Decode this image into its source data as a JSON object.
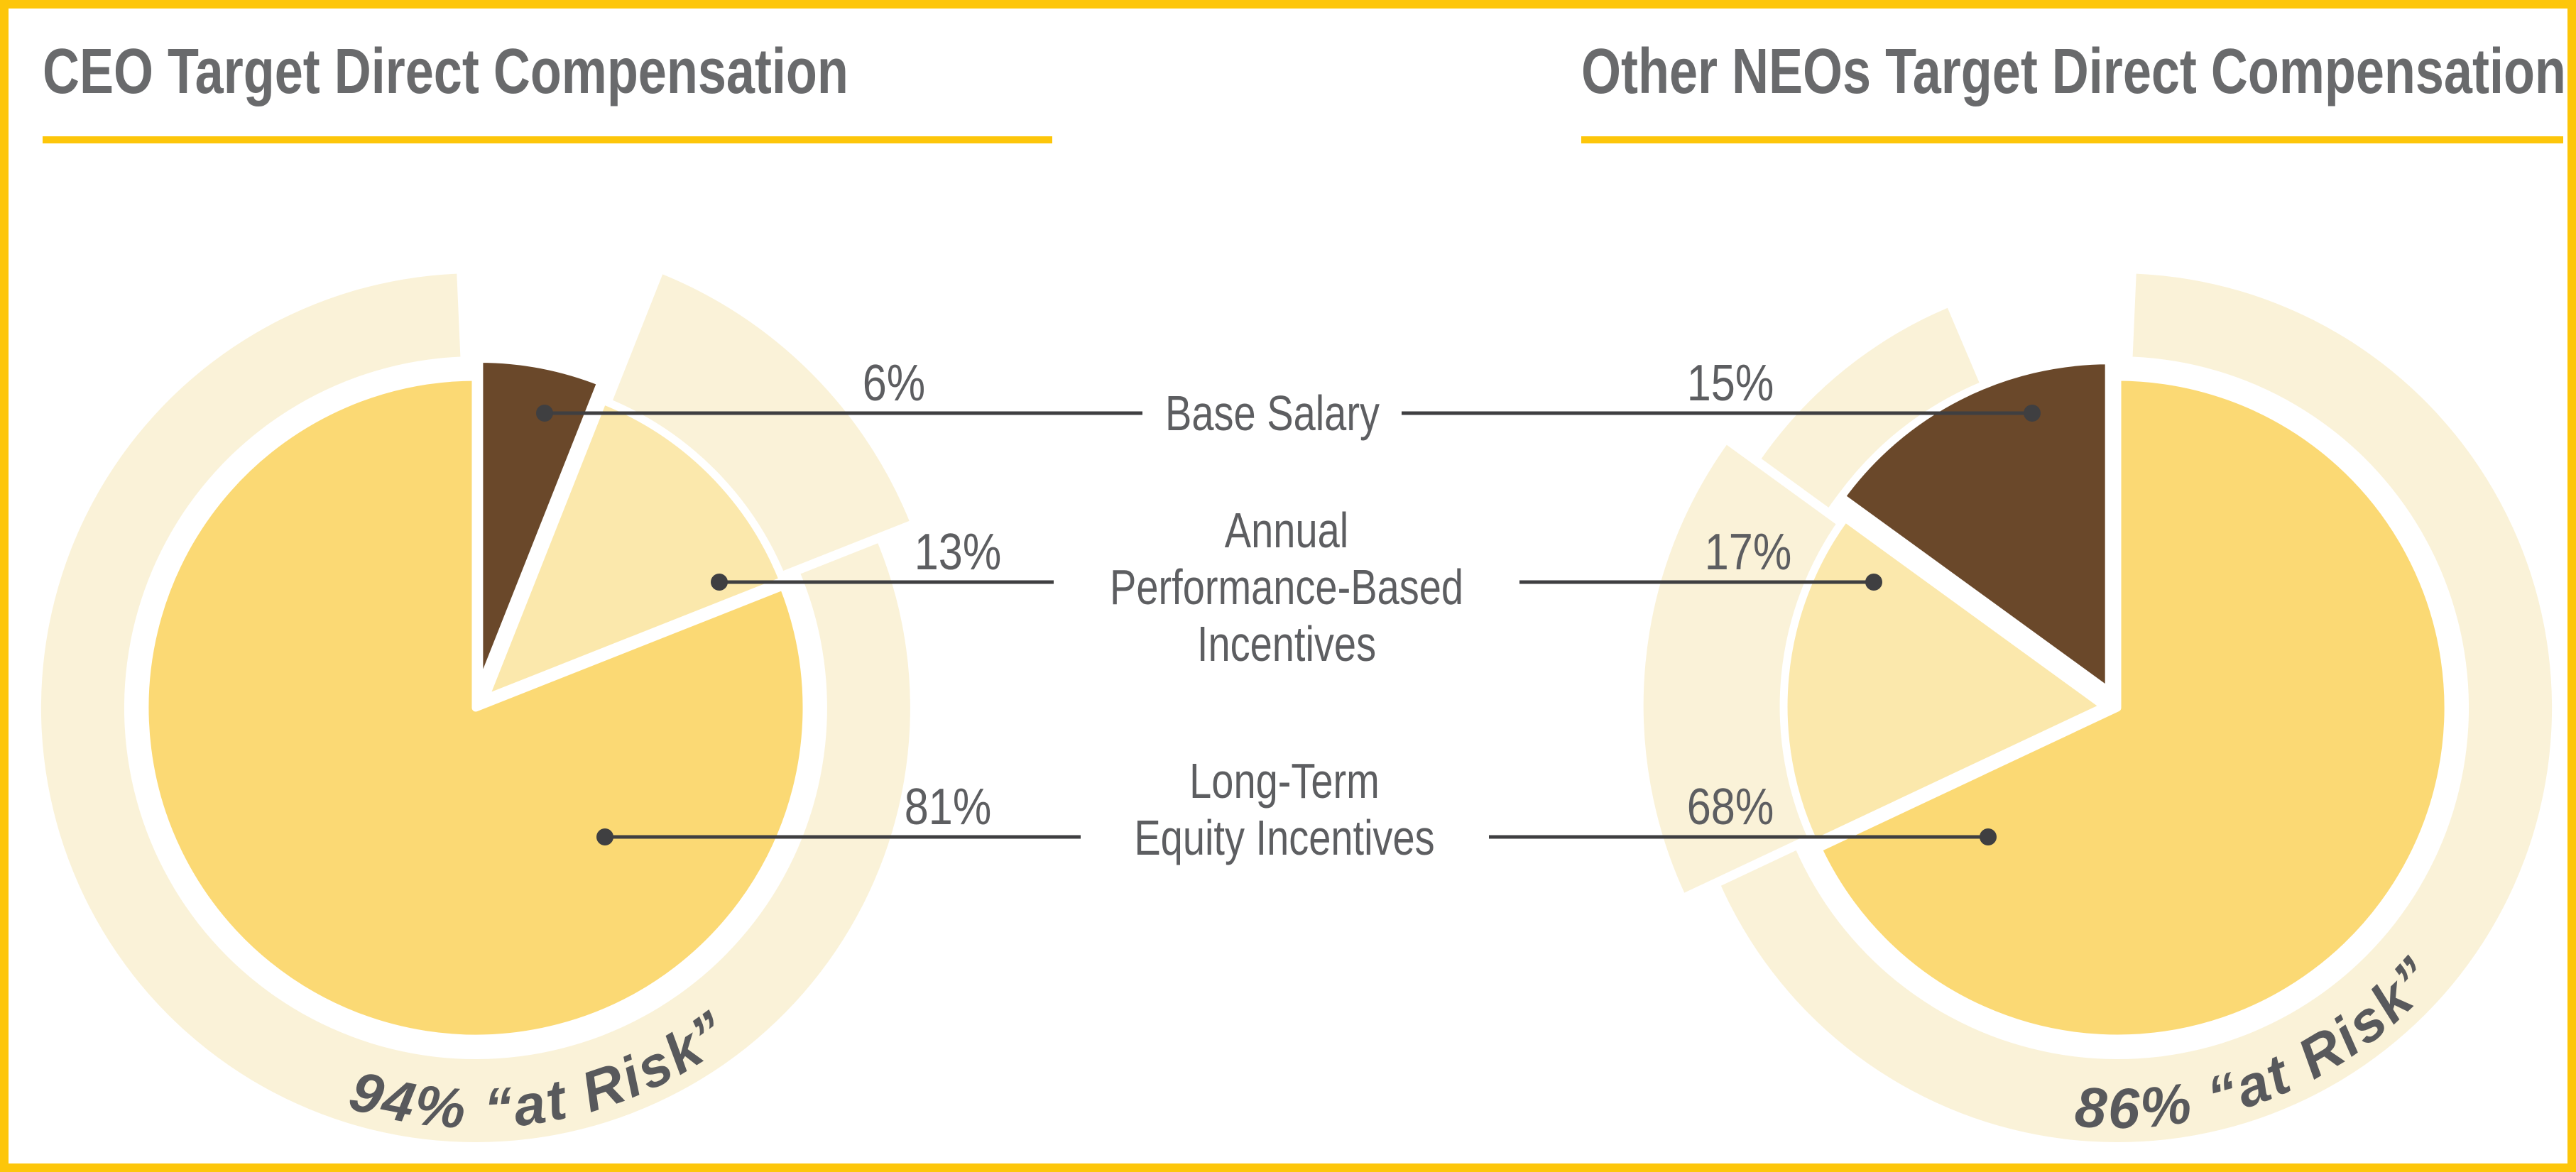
{
  "page": {
    "background": "#FFFFFF",
    "border_color": "#FDC60A",
    "accent_underline_color": "#FDC60A",
    "leader_line_color": "#3F3F41",
    "title_color": "#696A6C",
    "label_color": "#5D5E61"
  },
  "charts": [
    {
      "title": "CEO Target Direct Compensation",
      "at_risk_label": "94% “at Risk”",
      "at_risk_pct": 94,
      "slices": [
        {
          "label": "Base Salary",
          "value": 6,
          "display": "6%",
          "color": "#6A482A"
        },
        {
          "label": "Annual Performance-Based Incentives",
          "value": 13,
          "display": "13%",
          "color": "#FBE8AC"
        },
        {
          "label": "Long-Term Equity Incentives",
          "value": 81,
          "display": "81%",
          "color": "#FBD974"
        }
      ],
      "ring_color": "#FAF2D8"
    },
    {
      "title": "Other NEOs Target Direct Compensation",
      "at_risk_label": "86% “at Risk”",
      "at_risk_pct": 86,
      "slices": [
        {
          "label": "Base Salary",
          "value": 15,
          "display": "15%",
          "color": "#6A482A"
        },
        {
          "label": "Annual Performance-Based Incentives",
          "value": 17,
          "display": "17%",
          "color": "#FBE8AC"
        },
        {
          "label": "Long-Term Equity Incentives",
          "value": 68,
          "display": "68%",
          "color": "#FBD974"
        }
      ],
      "ring_color": "#FAF2D8"
    }
  ],
  "legend": {
    "rows": [
      {
        "lines": [
          "Base Salary"
        ],
        "left_pct": "6%",
        "right_pct": "15%"
      },
      {
        "lines": [
          "Annual",
          "Performance-Based",
          "Incentives"
        ],
        "left_pct": "13%",
        "right_pct": "17%"
      },
      {
        "lines": [
          "Long-Term",
          "Equity Incentives"
        ],
        "left_pct": "81%",
        "right_pct": "68%"
      }
    ]
  },
  "chart_data": [
    {
      "type": "pie",
      "title": "CEO Target Direct Compensation",
      "categories": [
        "Base Salary",
        "Annual Performance-Based Incentives",
        "Long-Term Equity Incentives"
      ],
      "values": [
        6,
        13,
        81
      ],
      "annotation": "94% “at Risk”",
      "at_risk_percent": 94,
      "direction": "clockwise",
      "start_angle": "12 o'clock",
      "colors": [
        "#6A482A",
        "#FBE8AC",
        "#FBD974"
      ]
    },
    {
      "type": "pie",
      "title": "Other NEOs Target Direct Compensation",
      "categories": [
        "Base Salary",
        "Annual Performance-Based Incentives",
        "Long-Term Equity Incentives"
      ],
      "values": [
        15,
        17,
        68
      ],
      "annotation": "86% “at Risk”",
      "at_risk_percent": 86,
      "direction": "counterclockwise",
      "start_angle": "12 o'clock",
      "colors": [
        "#6A482A",
        "#FBE8AC",
        "#FBD974"
      ]
    }
  ]
}
